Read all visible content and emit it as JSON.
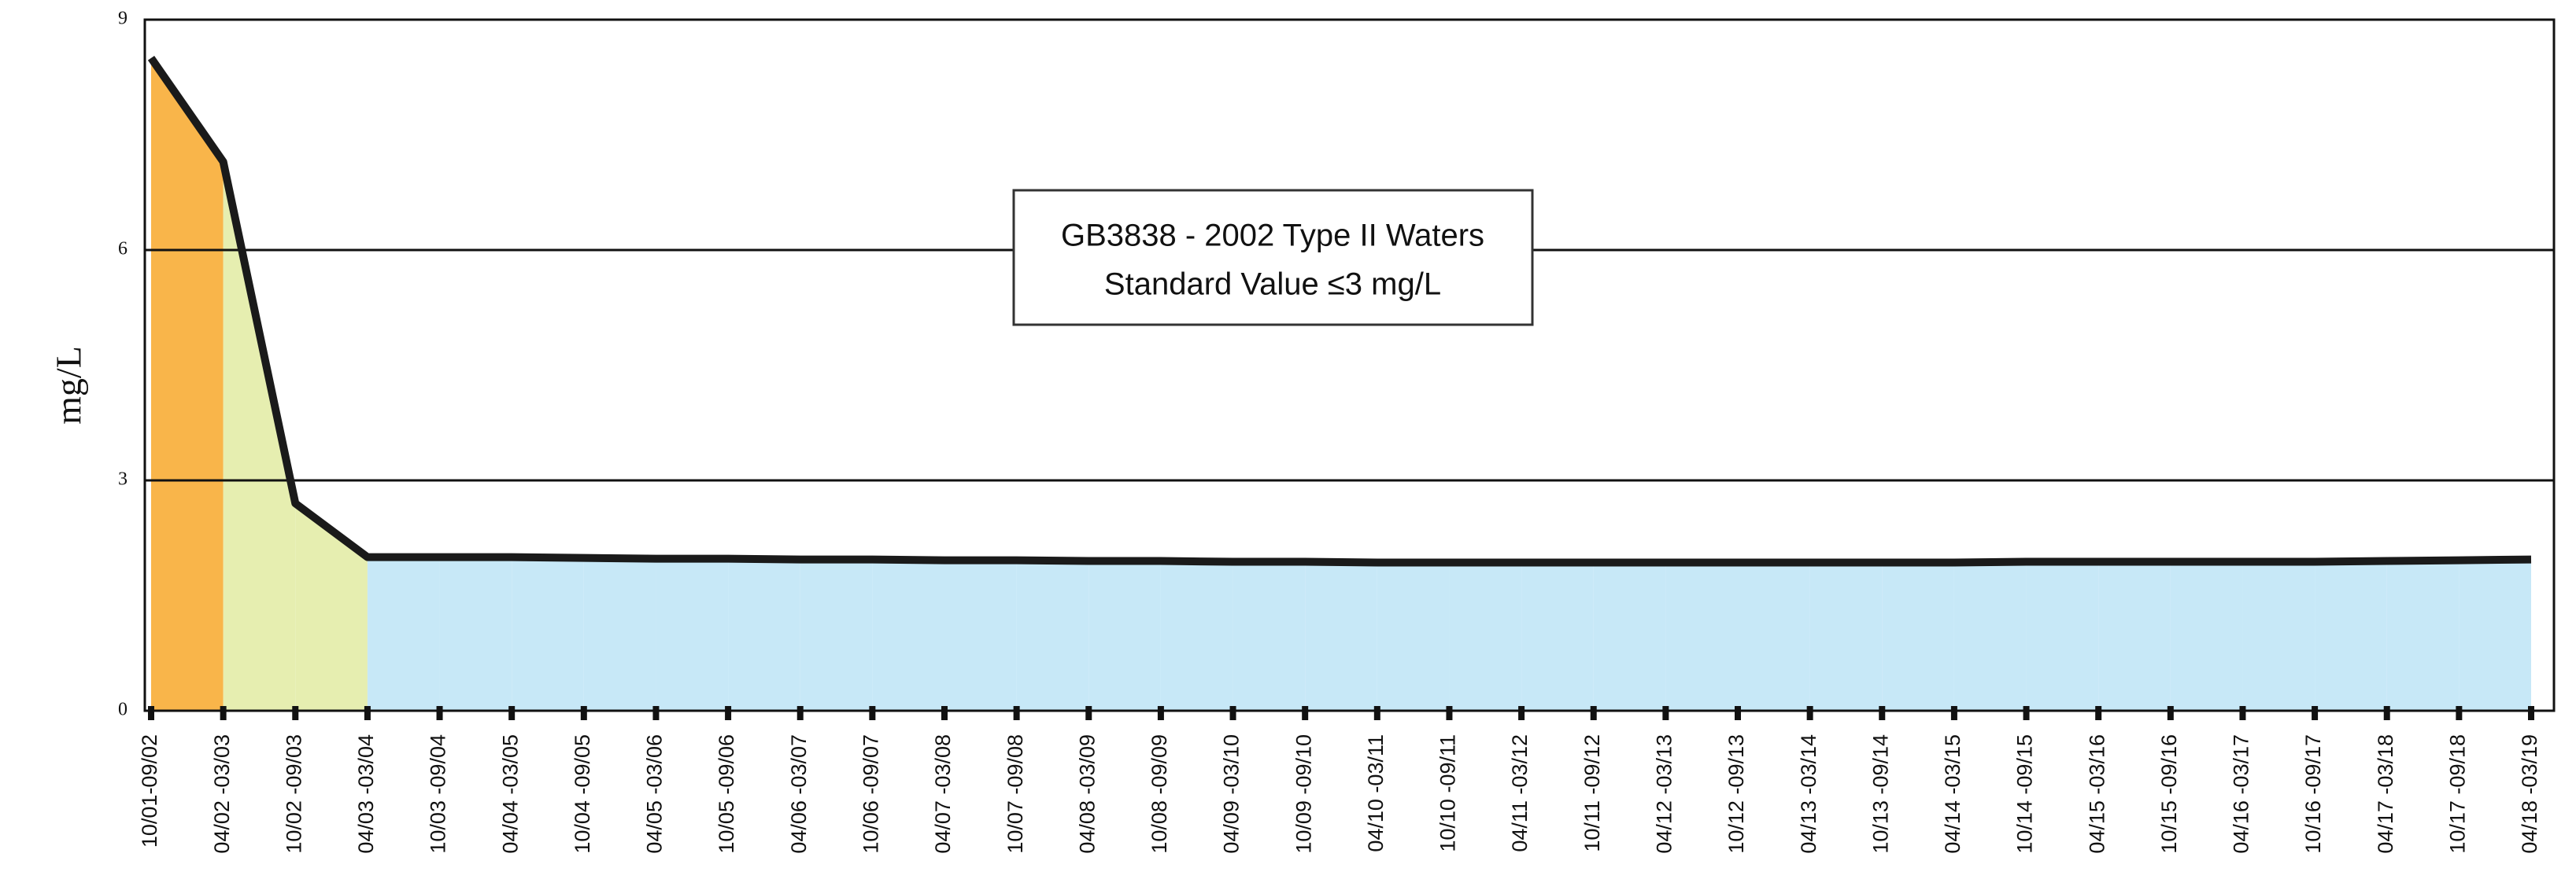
{
  "chart_data": {
    "type": "area",
    "y_label": "mg/L",
    "annotation": [
      "GB3838 - 2002 Type II Waters",
      "Standard Value ≤3 mg/L"
    ],
    "categories": [
      "10/01-09/02",
      "04/02 -03/03",
      "10/02 -09/03",
      "04/03 -03/04",
      "10/03 -09/04",
      "04/04 -03/05",
      "10/04 -09/05",
      "04/05 -03/06",
      "10/05 -09/06",
      "04/06 -03/07",
      "10/06 -09/07",
      "04/07 -03/08",
      "10/07 -09/08",
      "04/08 -03/09",
      "10/08 -09/09",
      "04/09 -03/10",
      "10/09 -09/10",
      "04/10 -03/11",
      "10/10 -09/11",
      "04/11 -03/12",
      "10/11 -09/12",
      "04/12 -03/13",
      "10/12 -09/13",
      "04/13 -03/14",
      "10/13 -09/14",
      "04/14 -03/15",
      "10/14 -09/15",
      "04/15 -03/16",
      "10/15 -09/16",
      "04/16 -03/17",
      "10/16 -09/17",
      "04/17 -03/18",
      "10/17 -09/18",
      "04/18 -03/19"
    ],
    "values": [
      8.5,
      7.15,
      2.7,
      2.0,
      2.0,
      2.0,
      1.99,
      1.98,
      1.98,
      1.97,
      1.97,
      1.96,
      1.96,
      1.95,
      1.95,
      1.94,
      1.94,
      1.93,
      1.93,
      1.93,
      1.93,
      1.93,
      1.93,
      1.93,
      1.93,
      1.93,
      1.94,
      1.94,
      1.94,
      1.94,
      1.94,
      1.95,
      1.96,
      1.97
    ],
    "line_color": "#1a1a1a",
    "segment_colors": [
      "#f9b54a",
      "#e6eeb0",
      "#e6eeb0",
      "#c7e8f7",
      "#c7e8f7",
      "#c7e8f7",
      "#c7e8f7",
      "#c7e8f7",
      "#c7e8f7",
      "#c7e8f7",
      "#c7e8f7",
      "#c7e8f7",
      "#c7e8f7",
      "#c7e8f7",
      "#c7e8f7",
      "#c7e8f7",
      "#c7e8f7",
      "#c7e8f7",
      "#c7e8f7",
      "#c7e8f7",
      "#c7e8f7",
      "#c7e8f7",
      "#c7e8f7",
      "#c7e8f7",
      "#c7e8f7",
      "#c7e8f7",
      "#c7e8f7",
      "#c7e8f7",
      "#c7e8f7",
      "#c7e8f7",
      "#c7e8f7",
      "#c7e8f7",
      "#c7e8f7"
    ],
    "ylim": [
      0,
      9
    ],
    "yticks": [
      0,
      3,
      6,
      9
    ],
    "grid": true
  }
}
